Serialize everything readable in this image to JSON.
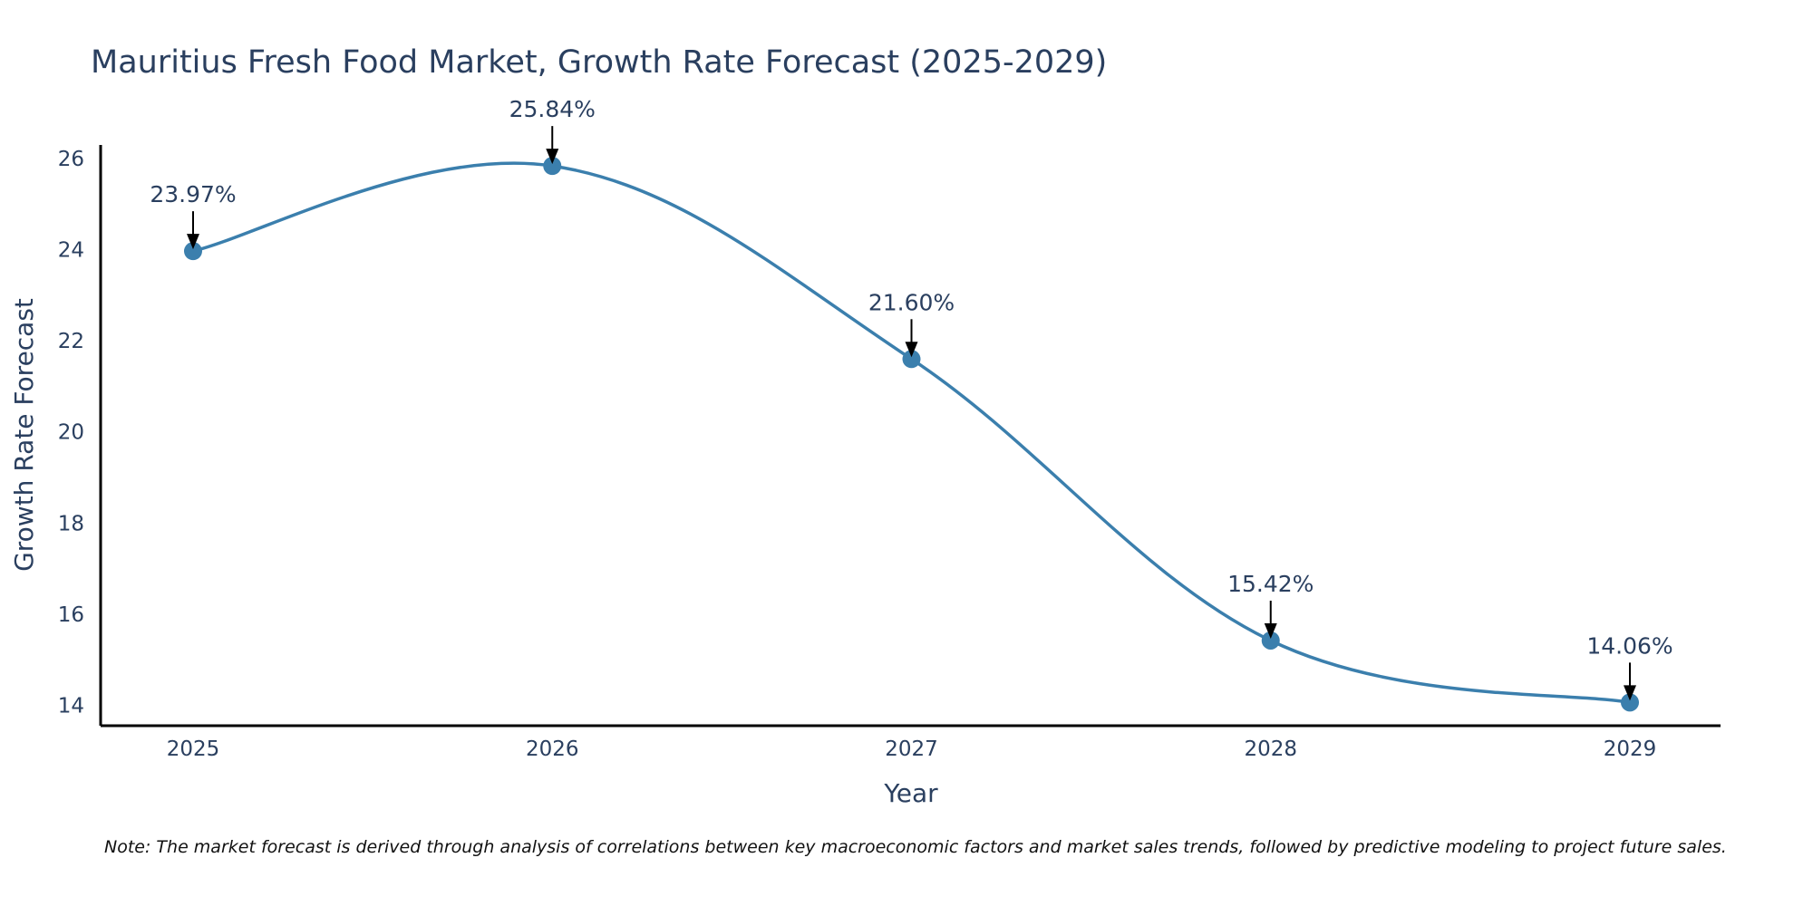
{
  "chart_data": {
    "type": "line",
    "title": "Mauritius Fresh Food Market, Growth Rate Forecast (2025-2029)",
    "xlabel": "Year",
    "ylabel": "Growth Rate Forecast",
    "categories": [
      "2025",
      "2026",
      "2027",
      "2028",
      "2029"
    ],
    "series": [
      {
        "name": "Growth Rate Forecast",
        "values": [
          23.97,
          25.84,
          21.6,
          15.42,
          14.06
        ]
      }
    ],
    "data_labels": [
      "23.97%",
      "25.84%",
      "21.60%",
      "15.42%",
      "14.06%"
    ],
    "y_ticks": [
      14,
      16,
      18,
      20,
      22,
      24,
      26
    ],
    "ylim": [
      13.55,
      26.3
    ],
    "grid": false,
    "line_shape": "spline",
    "colors": {
      "line": "#3b7fad",
      "marker": "#3b7fad",
      "arrow": "#000000",
      "axis": "#000000"
    },
    "note": "Note: The market forecast is derived through analysis of correlations between key macroeconomic factors and market sales trends, followed by predictive modeling to project future sales."
  }
}
